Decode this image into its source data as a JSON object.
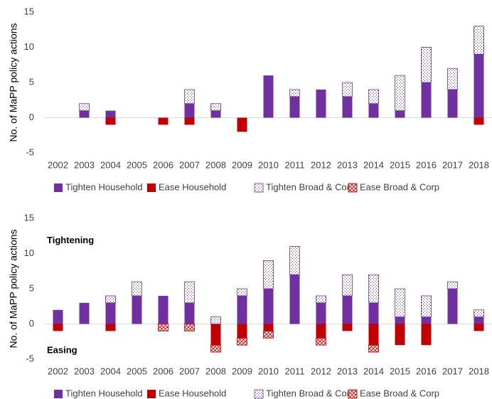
{
  "chart_data": [
    {
      "type": "stacked-bar",
      "ylabel": "No. of MaPP policy actions",
      "categories": [
        "2002",
        "2003",
        "2004",
        "2005",
        "2006",
        "2007",
        "2008",
        "2009",
        "2010",
        "2011",
        "2012",
        "2013",
        "2014",
        "2015",
        "2016",
        "2017",
        "2018"
      ],
      "series": [
        {
          "name": "Tighten Household",
          "color": "#7030a0",
          "fill": "solid",
          "values": [
            0,
            1,
            1,
            0,
            0,
            2,
            1,
            0,
            6,
            3,
            4,
            3,
            2,
            1,
            5,
            4,
            9
          ]
        },
        {
          "name": "Ease Household",
          "color": "#c00000",
          "fill": "solid",
          "values": [
            0,
            0,
            -1,
            0,
            -1,
            -1,
            0,
            -2,
            0,
            0,
            0,
            0,
            0,
            0,
            0,
            0,
            -1
          ]
        },
        {
          "name": "Tighten Broad & Corp",
          "color": "#7030a0",
          "fill": "dots",
          "values": [
            0,
            1,
            0,
            0,
            0,
            2,
            1,
            0,
            0,
            1,
            0,
            2,
            2,
            5,
            5,
            3,
            4
          ]
        },
        {
          "name": "Ease Broad & Corp",
          "color": "#c00000",
          "fill": "hatch",
          "values": [
            0,
            0,
            0,
            0,
            0,
            0,
            0,
            0,
            0,
            0,
            0,
            0,
            0,
            0,
            0,
            0,
            0
          ]
        }
      ],
      "ylim": [
        -5,
        15
      ],
      "yticks": [
        -5,
        0,
        5,
        10,
        15
      ],
      "grid": false
    },
    {
      "type": "stacked-bar",
      "ylabel": "No. of MaPP policy actions",
      "annotations": [
        "Tightening",
        "Easing"
      ],
      "categories": [
        "2002",
        "2003",
        "2004",
        "2005",
        "2006",
        "2007",
        "2008",
        "2009",
        "2010",
        "2011",
        "2012",
        "2013",
        "2014",
        "2015",
        "2016",
        "2017",
        "2018"
      ],
      "series": [
        {
          "name": "Tighten Household",
          "color": "#7030a0",
          "fill": "solid",
          "values": [
            2,
            3,
            3,
            4,
            4,
            3,
            0,
            4,
            5,
            7,
            3,
            4,
            3,
            1,
            1,
            5,
            1
          ]
        },
        {
          "name": "Ease Household",
          "color": "#c00000",
          "fill": "solid",
          "values": [
            -1,
            0,
            -1,
            0,
            0,
            0,
            -3,
            -2,
            -1,
            0,
            -2,
            -1,
            -3,
            -3,
            -3,
            0,
            -1
          ]
        },
        {
          "name": "Tighten Broad & Corp",
          "color": "#7030a0",
          "fill": "dots",
          "values": [
            0,
            0,
            1,
            2,
            0,
            3,
            1,
            1,
            4,
            4,
            1,
            3,
            4,
            4,
            3,
            1,
            1
          ]
        },
        {
          "name": "Ease Broad & Corp",
          "color": "#c00000",
          "fill": "hatch",
          "values": [
            0,
            0,
            0,
            0,
            -1,
            -1,
            -1,
            -1,
            -1,
            0,
            -1,
            0,
            -1,
            0,
            0,
            0,
            0
          ]
        }
      ],
      "ylim": [
        -5,
        15
      ],
      "yticks": [
        -5,
        0,
        5,
        10,
        15
      ],
      "grid": false
    }
  ]
}
